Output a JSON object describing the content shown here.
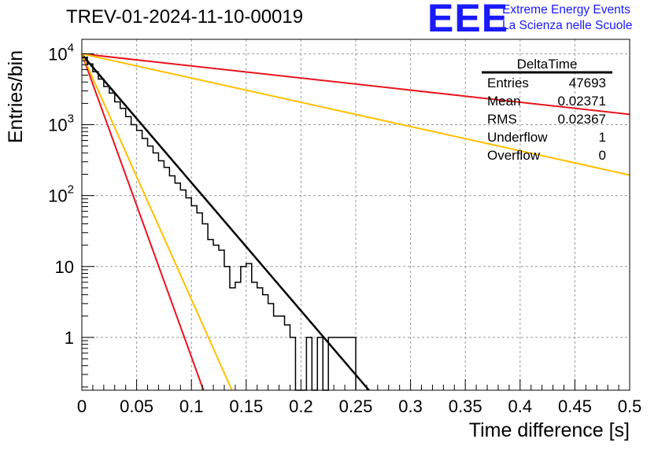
{
  "title": "TREV-01-2024-11-10-00019",
  "logo": {
    "mark": "EEE",
    "line1": "Extreme Energy Events",
    "line2": "La Scienza nelle Scuole",
    "color": "#1a1aff"
  },
  "chart_data": {
    "type": "histogram",
    "xlabel": "Time difference [s]",
    "ylabel": "Entries/bin",
    "xlim": [
      0,
      0.5
    ],
    "ylim": [
      0.18,
      16000
    ],
    "yscale": "log",
    "grid": true,
    "x_ticks": [
      "0",
      "0.05",
      "0.1",
      "0.15",
      "0.2",
      "0.25",
      "0.3",
      "0.35",
      "0.4",
      "0.45",
      "0.5"
    ],
    "y_ticks": [
      {
        "value": 1,
        "base": "1",
        "exp": ""
      },
      {
        "value": 10,
        "base": "10",
        "exp": ""
      },
      {
        "value": 100,
        "base": "10",
        "exp": "2"
      },
      {
        "value": 1000,
        "base": "10",
        "exp": "3"
      },
      {
        "value": 10000,
        "base": "10",
        "exp": "4"
      }
    ],
    "histogram": {
      "name": "DeltaTime",
      "bin_width": 0.005,
      "x_start": 0,
      "values": [
        8800,
        7200,
        5600,
        4400,
        3450,
        2800,
        2100,
        1700,
        1300,
        1000,
        830,
        640,
        500,
        400,
        310,
        250,
        190,
        150,
        120,
        93,
        72,
        57,
        40,
        24,
        20,
        17,
        10,
        5,
        6,
        10,
        11,
        6,
        5,
        4,
        3,
        2,
        2,
        1.5,
        1,
        0.15,
        0.15,
        1,
        0.15,
        1,
        0.15,
        1,
        1,
        1,
        1,
        1
      ]
    },
    "curves": [
      {
        "color": "#000000",
        "y0": 9800,
        "x1": 0.262,
        "y1": 0.18
      },
      {
        "color": "#e8141e",
        "y0": 10000,
        "x1": 0.5,
        "y1": 1400
      },
      {
        "color": "#ffc000",
        "y0": 10000,
        "x1": 0.5,
        "y1": 195
      },
      {
        "color": "#e8141e",
        "y0": 10000,
        "x1": 0.111,
        "y1": 0.18
      },
      {
        "color": "#ffc000",
        "y0": 10000,
        "x1": 0.137,
        "y1": 0.18
      }
    ],
    "stats": {
      "name": "DeltaTime",
      "rows": [
        {
          "label": "Entries",
          "value": "47693"
        },
        {
          "label": "Mean",
          "value": "0.02371"
        },
        {
          "label": "RMS",
          "value": "0.02367"
        },
        {
          "label": "Underflow",
          "value": "1"
        },
        {
          "label": "Overflow",
          "value": "0"
        }
      ]
    }
  }
}
